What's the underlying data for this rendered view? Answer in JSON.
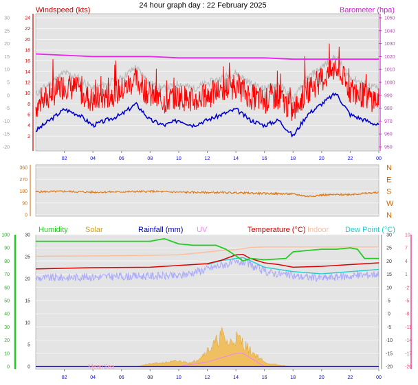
{
  "page": {
    "title": "24 hour graph day : 22 February 2025"
  },
  "colors": {
    "wind": "#ff0000",
    "gust": "#bbbbbb",
    "avg": "#0000cc",
    "baro": "#ee22ee",
    "dir": "#dd7711",
    "humidity": "#22cc22",
    "solar": "#f0c060",
    "rain": "#0000aa",
    "uv": "#ee88ee",
    "temp": "#dd0000",
    "indoor": "#ffbb99",
    "dew": "#22cccc",
    "dewlight": "#aaaaff",
    "axis_left": "#555555",
    "green_axis": "#22aa22",
    "pink_axis": "#ee4488",
    "time_axis": "#0000cc",
    "panel_bg": "#e4e4e4"
  },
  "chart_data": [
    {
      "type": "line",
      "title": "24 hour graph day : 22 February 2025",
      "x_ticks": [
        "02",
        "04",
        "06",
        "08",
        "10",
        "12",
        "14",
        "16",
        "18",
        "20",
        "22",
        "00"
      ],
      "series": [
        {
          "name": "Windspeed (kts)",
          "axis": "left",
          "ylim": [
            0,
            24
          ],
          "x": [
            0,
            1,
            2,
            3,
            4,
            5,
            6,
            7,
            8,
            9,
            10,
            11,
            12,
            13,
            14,
            15,
            16,
            17,
            18,
            19,
            20,
            21,
            22,
            23,
            24
          ],
          "values": [
            7,
            9,
            11,
            10,
            8,
            9,
            10,
            12,
            9,
            8,
            9,
            8,
            9,
            10,
            11,
            9,
            8,
            9,
            6,
            10,
            12,
            14,
            10,
            9,
            8
          ]
        },
        {
          "name": "Barometer (hpa)",
          "axis": "right",
          "ylim": [
            950,
            1050
          ],
          "x": [
            0,
            2,
            4,
            6,
            8,
            10,
            12,
            14,
            16,
            18,
            20,
            22,
            24
          ],
          "values": [
            1022,
            1021,
            1020,
            1020,
            1020,
            1019,
            1019,
            1019,
            1019,
            1018,
            1018,
            1018,
            1018
          ]
        }
      ],
      "left_ticks": [
        "2",
        "4",
        "6",
        "8",
        "10",
        "12",
        "14",
        "16",
        "18",
        "20",
        "22",
        "24"
      ],
      "left_outer_ticks": [
        "-20",
        "-15",
        "-10",
        "-5",
        "0",
        "5",
        "10",
        "15",
        "20",
        "25",
        "30"
      ],
      "right_ticks": [
        "950",
        "960",
        "970",
        "980",
        "990",
        "1000",
        "1010",
        "1020",
        "1030",
        "1040",
        "1050"
      ],
      "labels": {
        "left": "Windspeed (kts)",
        "right": "Barometer (hpa)"
      }
    },
    {
      "type": "line",
      "series": [
        {
          "name": "Wind direction",
          "ylim": [
            0,
            360
          ],
          "x": [
            0,
            2,
            4,
            6,
            8,
            10,
            12,
            14,
            16,
            18,
            19,
            20,
            22,
            24
          ],
          "values": [
            175,
            178,
            172,
            175,
            178,
            172,
            170,
            168,
            162,
            158,
            140,
            150,
            155,
            170
          ]
        }
      ],
      "left_ticks": [
        "0",
        "90",
        "180",
        "270",
        "360"
      ],
      "right_labels": [
        "N",
        "W",
        "S",
        "E",
        "N"
      ]
    },
    {
      "type": "line",
      "series": [
        {
          "name": "Humidity",
          "axis": "left_green",
          "ylim": [
            0,
            100
          ],
          "x": [
            0,
            3,
            6,
            8,
            9,
            10,
            11,
            12,
            12.6,
            13.3,
            14,
            14.5,
            15,
            16,
            17.5,
            18,
            19,
            20,
            21,
            22,
            22.5,
            23,
            24
          ],
          "values": [
            95,
            95,
            95,
            95,
            97,
            93,
            92,
            92,
            92,
            89,
            84,
            80,
            82,
            81,
            82,
            87,
            88,
            89,
            89,
            90,
            89,
            82,
            82
          ]
        },
        {
          "name": "Temperature (°C)",
          "axis": "right_pink",
          "ylim": [
            -20,
            10
          ],
          "x": [
            0,
            4,
            8,
            12,
            13,
            14,
            14.5,
            15,
            16,
            17,
            18,
            20,
            22,
            24
          ],
          "values": [
            2.2,
            2.5,
            2.6,
            3.4,
            4.2,
            5.4,
            5.5,
            4.6,
            3.6,
            3.2,
            2.6,
            2.8,
            3.2,
            3.6
          ]
        },
        {
          "name": "Indoor",
          "axis": "right_pink",
          "ylim": [
            -20,
            10
          ],
          "x": [
            0,
            6,
            10,
            13,
            14,
            15,
            16,
            18,
            20,
            22,
            24
          ],
          "values": [
            5.1,
            5.2,
            5.4,
            6.4,
            6.6,
            7.1,
            7.2,
            7.2,
            7.2,
            7.2,
            7.2
          ]
        },
        {
          "name": "Dew Point (°C)",
          "axis": "right_pink",
          "ylim": [
            -20,
            10
          ],
          "x": [
            0,
            4,
            8,
            10,
            12,
            13,
            14,
            14.5,
            15,
            16,
            18,
            20,
            22,
            24
          ],
          "values": [
            0.5,
            0.8,
            1.0,
            1.0,
            2.6,
            3.5,
            4.0,
            4.2,
            3.5,
            2.0,
            1.0,
            0.5,
            1.0,
            1.5
          ]
        },
        {
          "name": "Solar",
          "axis": "left_green",
          "ylim": [
            0,
            100
          ],
          "x": [
            0,
            7,
            8,
            9,
            10,
            11,
            12,
            12.6,
            13,
            13.5,
            14,
            14.5,
            15,
            15.5,
            16,
            17,
            18,
            24
          ],
          "values": [
            0,
            0,
            2,
            3,
            4,
            3,
            12,
            18,
            24,
            17,
            22,
            18,
            12,
            8,
            3,
            1,
            0,
            0
          ]
        },
        {
          "name": "UV",
          "axis": "mid",
          "ylim": [
            0,
            30
          ],
          "x": [
            0,
            10,
            12,
            13,
            14,
            14.5,
            15,
            16,
            24
          ],
          "values": [
            0,
            0,
            1,
            2,
            3,
            3,
            2,
            0,
            0
          ]
        }
      ],
      "labels": [
        "Humidity",
        "Solar",
        "Rainfall (mm)",
        "UV",
        "Temperature (°C)",
        "Indoor",
        "Dew Point (°C)"
      ],
      "left_green_ticks": [
        "0",
        "10",
        "20",
        "30",
        "40",
        "50",
        "60",
        "70",
        "80",
        "90",
        "100"
      ],
      "mid_ticks": [
        "0",
        "5",
        "10",
        "15",
        "20",
        "25",
        "30"
      ],
      "right_ticks": [
        "-20",
        "-15",
        "-10",
        "-5",
        "0",
        "5",
        "10",
        "15",
        "20",
        "25",
        "30"
      ],
      "right_pink_ticks": [
        "-20",
        "-17",
        "-14",
        "-11",
        "-8",
        "-5",
        "-2",
        "1",
        "4",
        "7",
        "10"
      ],
      "footer": "MeanSea"
    }
  ]
}
